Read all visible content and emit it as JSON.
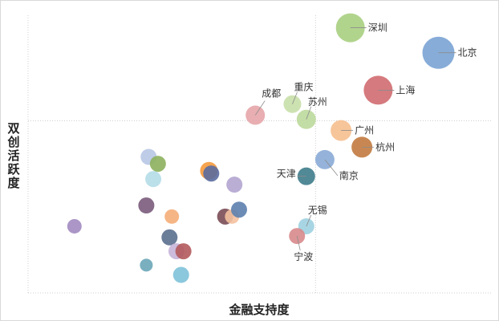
{
  "chart_data": {
    "type": "scatter",
    "xlabel": "金融支持度",
    "ylabel": "双创活跃度",
    "grid": true,
    "legend": "none",
    "xlim": [
      0,
      100
    ],
    "ylim": [
      0,
      100
    ],
    "reference_lines": {
      "x": 62,
      "y": 62
    },
    "points": [
      {
        "label": "深圳",
        "x": 69.5,
        "y": 95.5,
        "size": 1.8,
        "color": "#a9cf81",
        "label_pos": "right"
      },
      {
        "label": "北京",
        "x": 88.5,
        "y": 86.5,
        "size": 2.0,
        "color": "#7aa3d4",
        "label_pos": "right"
      },
      {
        "label": "上海",
        "x": 75.5,
        "y": 73.0,
        "size": 1.8,
        "color": "#d06b70",
        "label_pos": "right"
      },
      {
        "label": "成都",
        "x": 49.0,
        "y": 64.0,
        "size": 1.2,
        "color": "#e6a5a9",
        "label_pos": "upper-left"
      },
      {
        "label": "重庆",
        "x": 57.0,
        "y": 68.0,
        "size": 1.1,
        "color": "#c8dfa8",
        "label_pos": "upper-right"
      },
      {
        "label": "苏州",
        "x": 60.0,
        "y": 62.5,
        "size": 1.2,
        "color": "#bdd99c",
        "label_pos": "upper-right"
      },
      {
        "label": "广州",
        "x": 67.5,
        "y": 58.5,
        "size": 1.3,
        "color": "#f6bf8f",
        "label_pos": "right"
      },
      {
        "label": "杭州",
        "x": 72.0,
        "y": 52.5,
        "size": 1.3,
        "color": "#c27a3f",
        "label_pos": "right"
      },
      {
        "label": "南京",
        "x": 64.0,
        "y": 48.0,
        "size": 1.2,
        "color": "#8aabd6",
        "label_pos": "lower-right"
      },
      {
        "label": "天津",
        "x": 60.0,
        "y": 42.0,
        "size": 1.1,
        "color": "#3e7c8b",
        "label_pos": "left"
      },
      {
        "label": "无锡",
        "x": 60.0,
        "y": 24.0,
        "size": 1.0,
        "color": "#9fd0e0",
        "label_pos": "upper-right"
      },
      {
        "label": "宁波",
        "x": 58.0,
        "y": 20.5,
        "size": 1.0,
        "color": "#d88a8c",
        "label_pos": "below"
      },
      {
        "x": 26.0,
        "y": 49.0,
        "size": 1.0,
        "color": "#b8c7e6"
      },
      {
        "x": 28.0,
        "y": 46.5,
        "size": 1.0,
        "color": "#8db15d"
      },
      {
        "x": 27.0,
        "y": 41.0,
        "size": 1.0,
        "color": "#b4dde8"
      },
      {
        "x": 39.0,
        "y": 44.0,
        "size": 1.1,
        "color": "#f59a3c"
      },
      {
        "x": 39.5,
        "y": 43.0,
        "size": 1.0,
        "color": "#5a6b9e"
      },
      {
        "x": 44.5,
        "y": 39.0,
        "size": 1.0,
        "color": "#b3a5d0"
      },
      {
        "x": 25.5,
        "y": 31.5,
        "size": 1.0,
        "color": "#7a5b7b"
      },
      {
        "x": 31.0,
        "y": 27.5,
        "size": 0.9,
        "color": "#f5ad78"
      },
      {
        "x": 42.5,
        "y": 27.5,
        "size": 1.0,
        "color": "#7a4c55"
      },
      {
        "x": 44.0,
        "y": 27.5,
        "size": 0.9,
        "color": "#f4c2a0"
      },
      {
        "x": 45.5,
        "y": 30.0,
        "size": 1.0,
        "color": "#5c7fae"
      },
      {
        "x": 10.0,
        "y": 24.0,
        "size": 0.9,
        "color": "#a28bc1"
      },
      {
        "x": 30.5,
        "y": 20.0,
        "size": 1.0,
        "color": "#5a6f8e"
      },
      {
        "x": 32.0,
        "y": 15.0,
        "size": 1.0,
        "color": "#c7b4d8"
      },
      {
        "x": 33.5,
        "y": 15.0,
        "size": 1.0,
        "color": "#b35a5c"
      },
      {
        "x": 25.5,
        "y": 10.0,
        "size": 0.8,
        "color": "#6aa6b8"
      },
      {
        "x": 33.0,
        "y": 6.5,
        "size": 1.0,
        "color": "#7ec2d9"
      }
    ]
  }
}
